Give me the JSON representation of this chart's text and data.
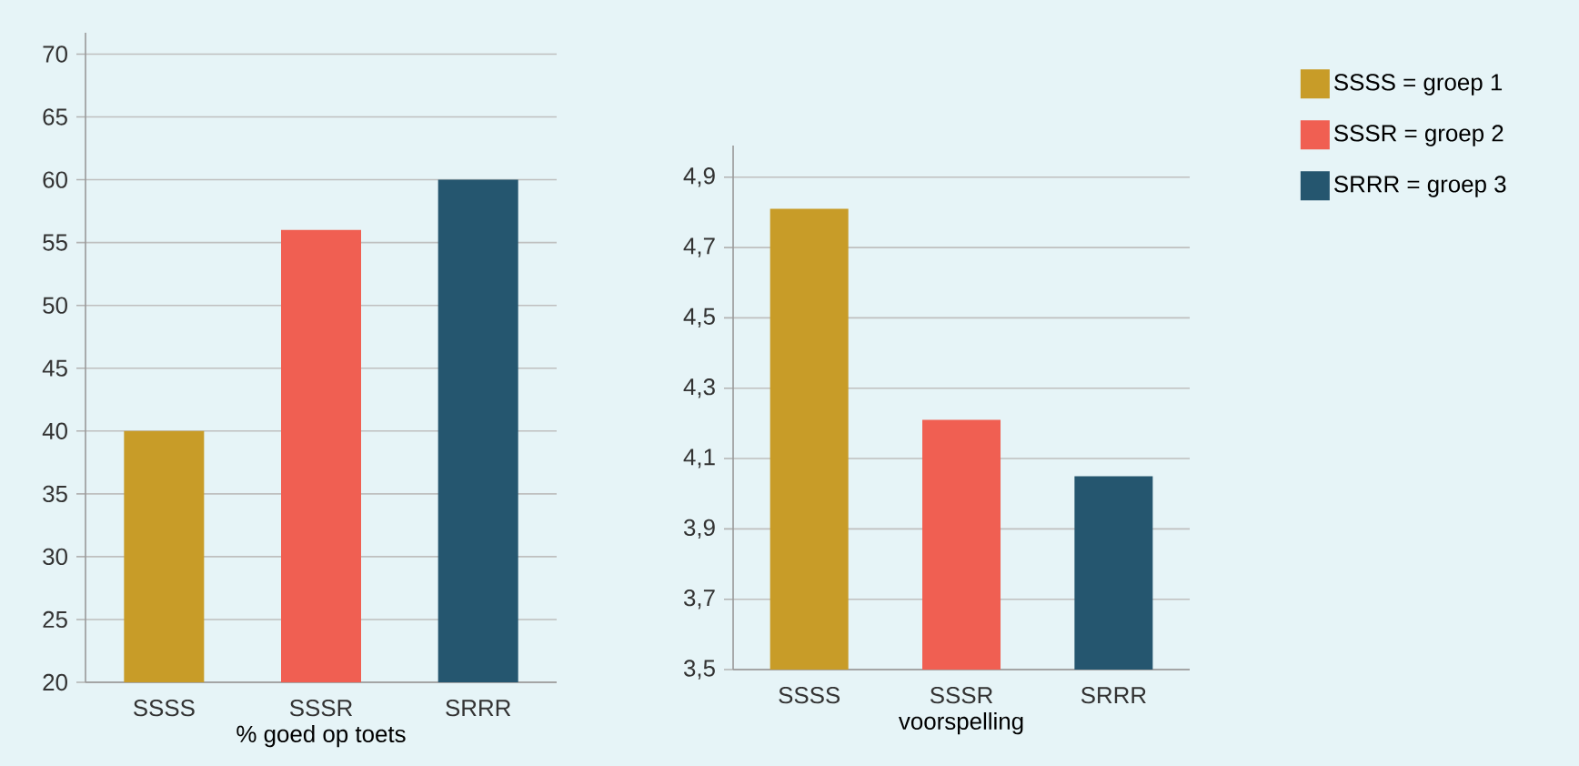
{
  "chart_data": [
    {
      "type": "bar",
      "xlabel": "% goed op toets",
      "categories": [
        "SSSS",
        "SSSR",
        "SRRR"
      ],
      "series": [
        {
          "color": "#c89c28",
          "values": [
            40,
            null,
            null
          ]
        },
        {
          "color": "#f05f52",
          "values": [
            null,
            56,
            null
          ]
        },
        {
          "color": "#25566f",
          "values": [
            null,
            null,
            60
          ]
        }
      ],
      "ylim": [
        20,
        71.7
      ],
      "yticks": [
        20,
        25,
        30,
        35,
        40,
        45,
        50,
        55,
        60,
        65,
        70
      ],
      "grid": "y"
    },
    {
      "type": "bar",
      "xlabel": "voorspelling",
      "categories": [
        "SSSS",
        "SSSR",
        "SRRR"
      ],
      "series": [
        {
          "name": "SSSS = groep 1",
          "color": "#c89c28",
          "values": [
            4.81,
            null,
            null
          ]
        },
        {
          "name": "SSSR = groep 2",
          "color": "#f05f52",
          "values": [
            null,
            4.21,
            null
          ]
        },
        {
          "name": "SRRR = groep 3",
          "color": "#25566f",
          "values": [
            null,
            null,
            4.05
          ]
        }
      ],
      "ylim": [
        3.5,
        4.99
      ],
      "yticks": [
        {
          "value": 3.5,
          "label": "3,5"
        },
        {
          "value": 3.7,
          "label": "3,7"
        },
        {
          "value": 3.9,
          "label": "3,9"
        },
        {
          "value": 4.1,
          "label": "4,1"
        },
        {
          "value": 4.3,
          "label": "4,3"
        },
        {
          "value": 4.5,
          "label": "4,5"
        },
        {
          "value": 4.7,
          "label": "4,7"
        },
        {
          "value": 4.9,
          "label": "4,9"
        }
      ],
      "grid": "y",
      "legend": "right"
    }
  ]
}
